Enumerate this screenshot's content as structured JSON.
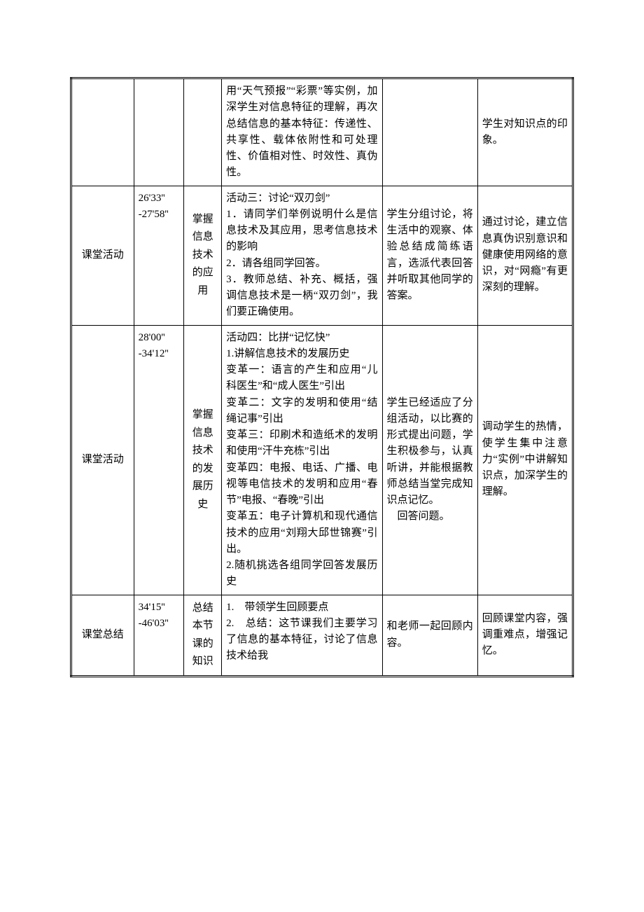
{
  "colors": {
    "page_bg": "#ffffff",
    "text": "#000000",
    "border": "#000000"
  },
  "typography": {
    "body_fontsize_pt": 11,
    "font_family": "SimSun"
  },
  "table": {
    "columns": [
      {
        "key": "phase",
        "width_pct": 12.5,
        "align": "center"
      },
      {
        "key": "time",
        "width_pct": 10,
        "align": "left"
      },
      {
        "key": "goal",
        "width_pct": 7.5,
        "align": "center"
      },
      {
        "key": "teacher",
        "width_pct": 32,
        "align": "justify"
      },
      {
        "key": "student",
        "width_pct": 19,
        "align": "justify"
      },
      {
        "key": "intent",
        "width_pct": 19,
        "align": "justify"
      }
    ],
    "rows": [
      {
        "phase": "",
        "time": "",
        "goal": "",
        "teacher": "用“天气预报”“彩票”等实例，加深学生对信息特征的理解，再次总结信息的基本特征：传递性、共享性、载体依附性和可处理性、价值相对性、时效性、真伪性。",
        "student": "",
        "intent": "学生对知识点的印象。"
      },
      {
        "phase": "课堂活动",
        "time": "26'33''\n-27'58''",
        "goal": "掌握信息技术的应用",
        "teacher": "活动三：讨论“双刃剑”\n1．请同学们举例说明什么是信息技术及其应用，思考信息技术的影响\n2．请各组同学回答。\n3．教师总结、补充、概括，强调信息技术是一柄“双刃剑”，我们要正确使用。",
        "student": "学生分组讨论，将生活中的观察、体验总结成简练语言，选派代表回答并听取其他同学的答案。",
        "intent": "通过讨论，建立信息真伪识别意识和健康使用网络的意识，对“网瘾”有更深刻的理解。"
      },
      {
        "phase": "课堂活动",
        "time": "28'00''\n-34'12''",
        "goal": "掌握信息技术的发展历史",
        "teacher": "活动四：比拼“记忆快”\n1.讲解信息技术的发展历史\n变革一：语言的产生和应用“儿科医生”和“成人医生”引出\n变革二：文字的发明和使用“结绳记事”引出\n变革三：印刷术和造纸术的发明和使用“汗牛充栋”引出\n变革四：电报、电话、广播、电视等电信技术的发明和应用“春节”电报、“春晚”引出\n变革五：电子计算机和现代通信技术的应用“刘翔大邱世锦赛”引出。\n2.随机挑选各组同学回答发展历史",
        "student": "学生已经适应了分组活动，以比赛的形式提出问题，学生积极参与，认真听讲，并能根据教师总结当堂完成知识点记忆。\n　回答问题。",
        "intent": "调动学生的热情，使学生集中注意力“实例”中讲解知识点，加深学生的理解。"
      },
      {
        "phase": "课堂总结",
        "time": "34'15''\n-46'03''",
        "goal": "总结本节课的知识",
        "teacher": "1.　带领学生回顾要点\n2.　总结：这节课我们主要学习了信息的基本特征，讨论了信息技术给我",
        "student": "和老师一起回顾内容。",
        "intent": "回顾课堂内容，强调重难点，增强记忆。"
      }
    ]
  }
}
